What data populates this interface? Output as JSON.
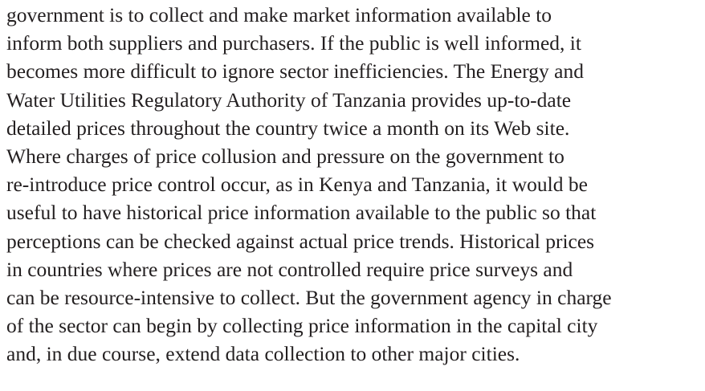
{
  "document": {
    "lines": [
      "government is to collect and make market information available to",
      "inform both suppliers and purchasers. If the public is well informed, it",
      "becomes more difficult to ignore sector inefficiencies. The Energy and",
      "Water Utilities Regulatory Authority of Tanzania provides up-to-date",
      "detailed prices throughout the country twice a month on its Web site.",
      "Where charges of price collusion and pressure on the government to",
      "re-introduce price control occur, as in Kenya and Tanzania, it would be",
      "useful to have historical price information available to the public so that",
      "perceptions can be checked against actual price trends. Historical prices",
      "in countries where prices are not controlled require price surveys and",
      "can be resource-intensive to collect. But the government agency in charge",
      "of the sector can begin by collecting price information in the capital city",
      "and, in due course, extend data collection to other major cities."
    ]
  }
}
